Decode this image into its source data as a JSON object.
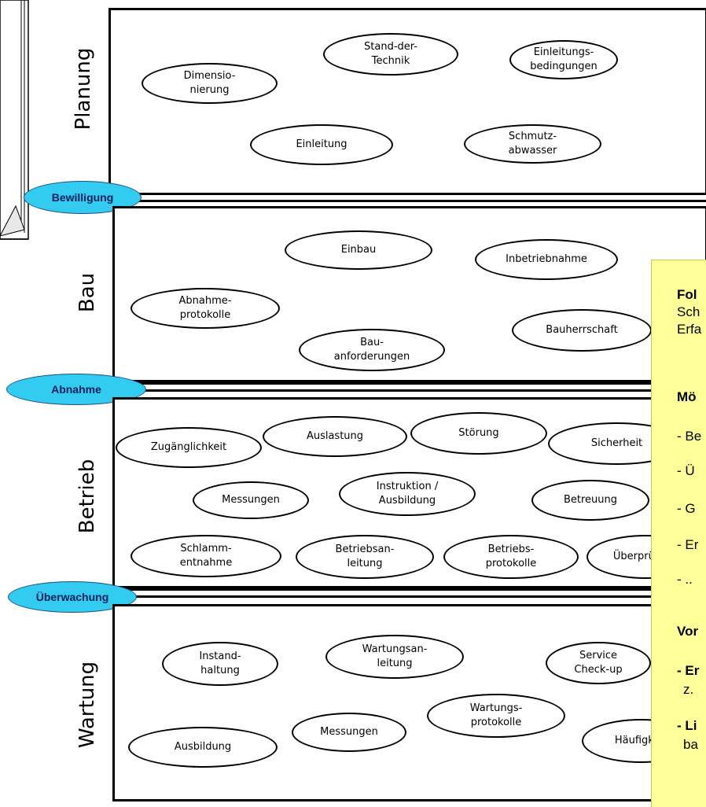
{
  "phases": [
    {
      "label": "Planung",
      "nodes": [
        {
          "id": "dimensionierung",
          "text": "Dimensio-\nnierung"
        },
        {
          "id": "stand-der-technik",
          "text": "Stand-der-\nTechnik"
        },
        {
          "id": "einleitungsbedingungen",
          "text": "Einleitungs-\nbedingungen"
        },
        {
          "id": "einleitung",
          "text": "Einleitung"
        },
        {
          "id": "schmutzabwasser",
          "text": "Schmutz-\nabwasser"
        }
      ]
    },
    {
      "label": "Bau",
      "nodes": [
        {
          "id": "einbau",
          "text": "Einbau"
        },
        {
          "id": "inbetriebnahme",
          "text": "Inbetriebnahme"
        },
        {
          "id": "abnahmeprotokolle",
          "text": "Abnahme-\nprotokolle"
        },
        {
          "id": "bauanforderungen",
          "text": "Bau-\nanforderungen"
        },
        {
          "id": "bauherrschaft",
          "text": "Bauherrschaft"
        }
      ]
    },
    {
      "label": "Betrieb",
      "nodes": [
        {
          "id": "zugaenglichkeit",
          "text": "Zugänglichkeit"
        },
        {
          "id": "auslastung",
          "text": "Auslastung"
        },
        {
          "id": "stoerung",
          "text": "Störung"
        },
        {
          "id": "sicherheit",
          "text": "Sicherheit"
        },
        {
          "id": "messungen",
          "text": "Messungen"
        },
        {
          "id": "instruktion-ausbildung",
          "text": "Instruktion /\nAusbildung"
        },
        {
          "id": "betreuung",
          "text": "Betreuung"
        },
        {
          "id": "schlammentnahme",
          "text": "Schlamm-\nentnahme"
        },
        {
          "id": "betriebsanleitung",
          "text": "Betriebsan-\nleitung"
        },
        {
          "id": "betriebsprotokolle",
          "text": "Betriebs-\nprotokolle"
        },
        {
          "id": "ueberpruefung",
          "text": "Überprüfung"
        }
      ]
    },
    {
      "label": "Wartung",
      "nodes": [
        {
          "id": "instandhaltung",
          "text": "Instand-\nhaltung"
        },
        {
          "id": "wartungsanleitung",
          "text": "Wartungsan-\nleitung"
        },
        {
          "id": "service-check-up",
          "text": "Service\nCheck-up"
        },
        {
          "id": "wartungsprotokolle",
          "text": "Wartungs-\nprotokolle"
        },
        {
          "id": "ausbildung",
          "text": "Ausbildung"
        },
        {
          "id": "messungen-wartung",
          "text": "Messungen"
        },
        {
          "id": "haeufigkeit",
          "text": "Häufigkeit"
        }
      ]
    }
  ],
  "milestones": [
    "Bewilligung",
    "Abnahme",
    "Überwachung"
  ],
  "note": {
    "lines": [
      {
        "text": "Fol",
        "bold": true
      },
      {
        "text": "Sch",
        "bold": false
      },
      {
        "text": "Erfa",
        "bold": false
      },
      {
        "text": "Mö",
        "bold": true
      },
      {
        "text": "- Be",
        "bold": false
      },
      {
        "text": "- Ü",
        "bold": false
      },
      {
        "text": "- G",
        "bold": false
      },
      {
        "text": "- Er",
        "bold": false
      },
      {
        "text": "- ..",
        "bold": false
      },
      {
        "text": "Vor",
        "bold": true
      },
      {
        "text": "- Er",
        "bold": true
      },
      {
        "text": "z.",
        "bold": false
      },
      {
        "text": "- Li",
        "bold": true
      },
      {
        "text": "ba",
        "bold": false
      }
    ]
  },
  "colors": {
    "milestone_fill": "#33ccf0",
    "milestone_text": "#002060",
    "note_fill": "#ffff99"
  }
}
